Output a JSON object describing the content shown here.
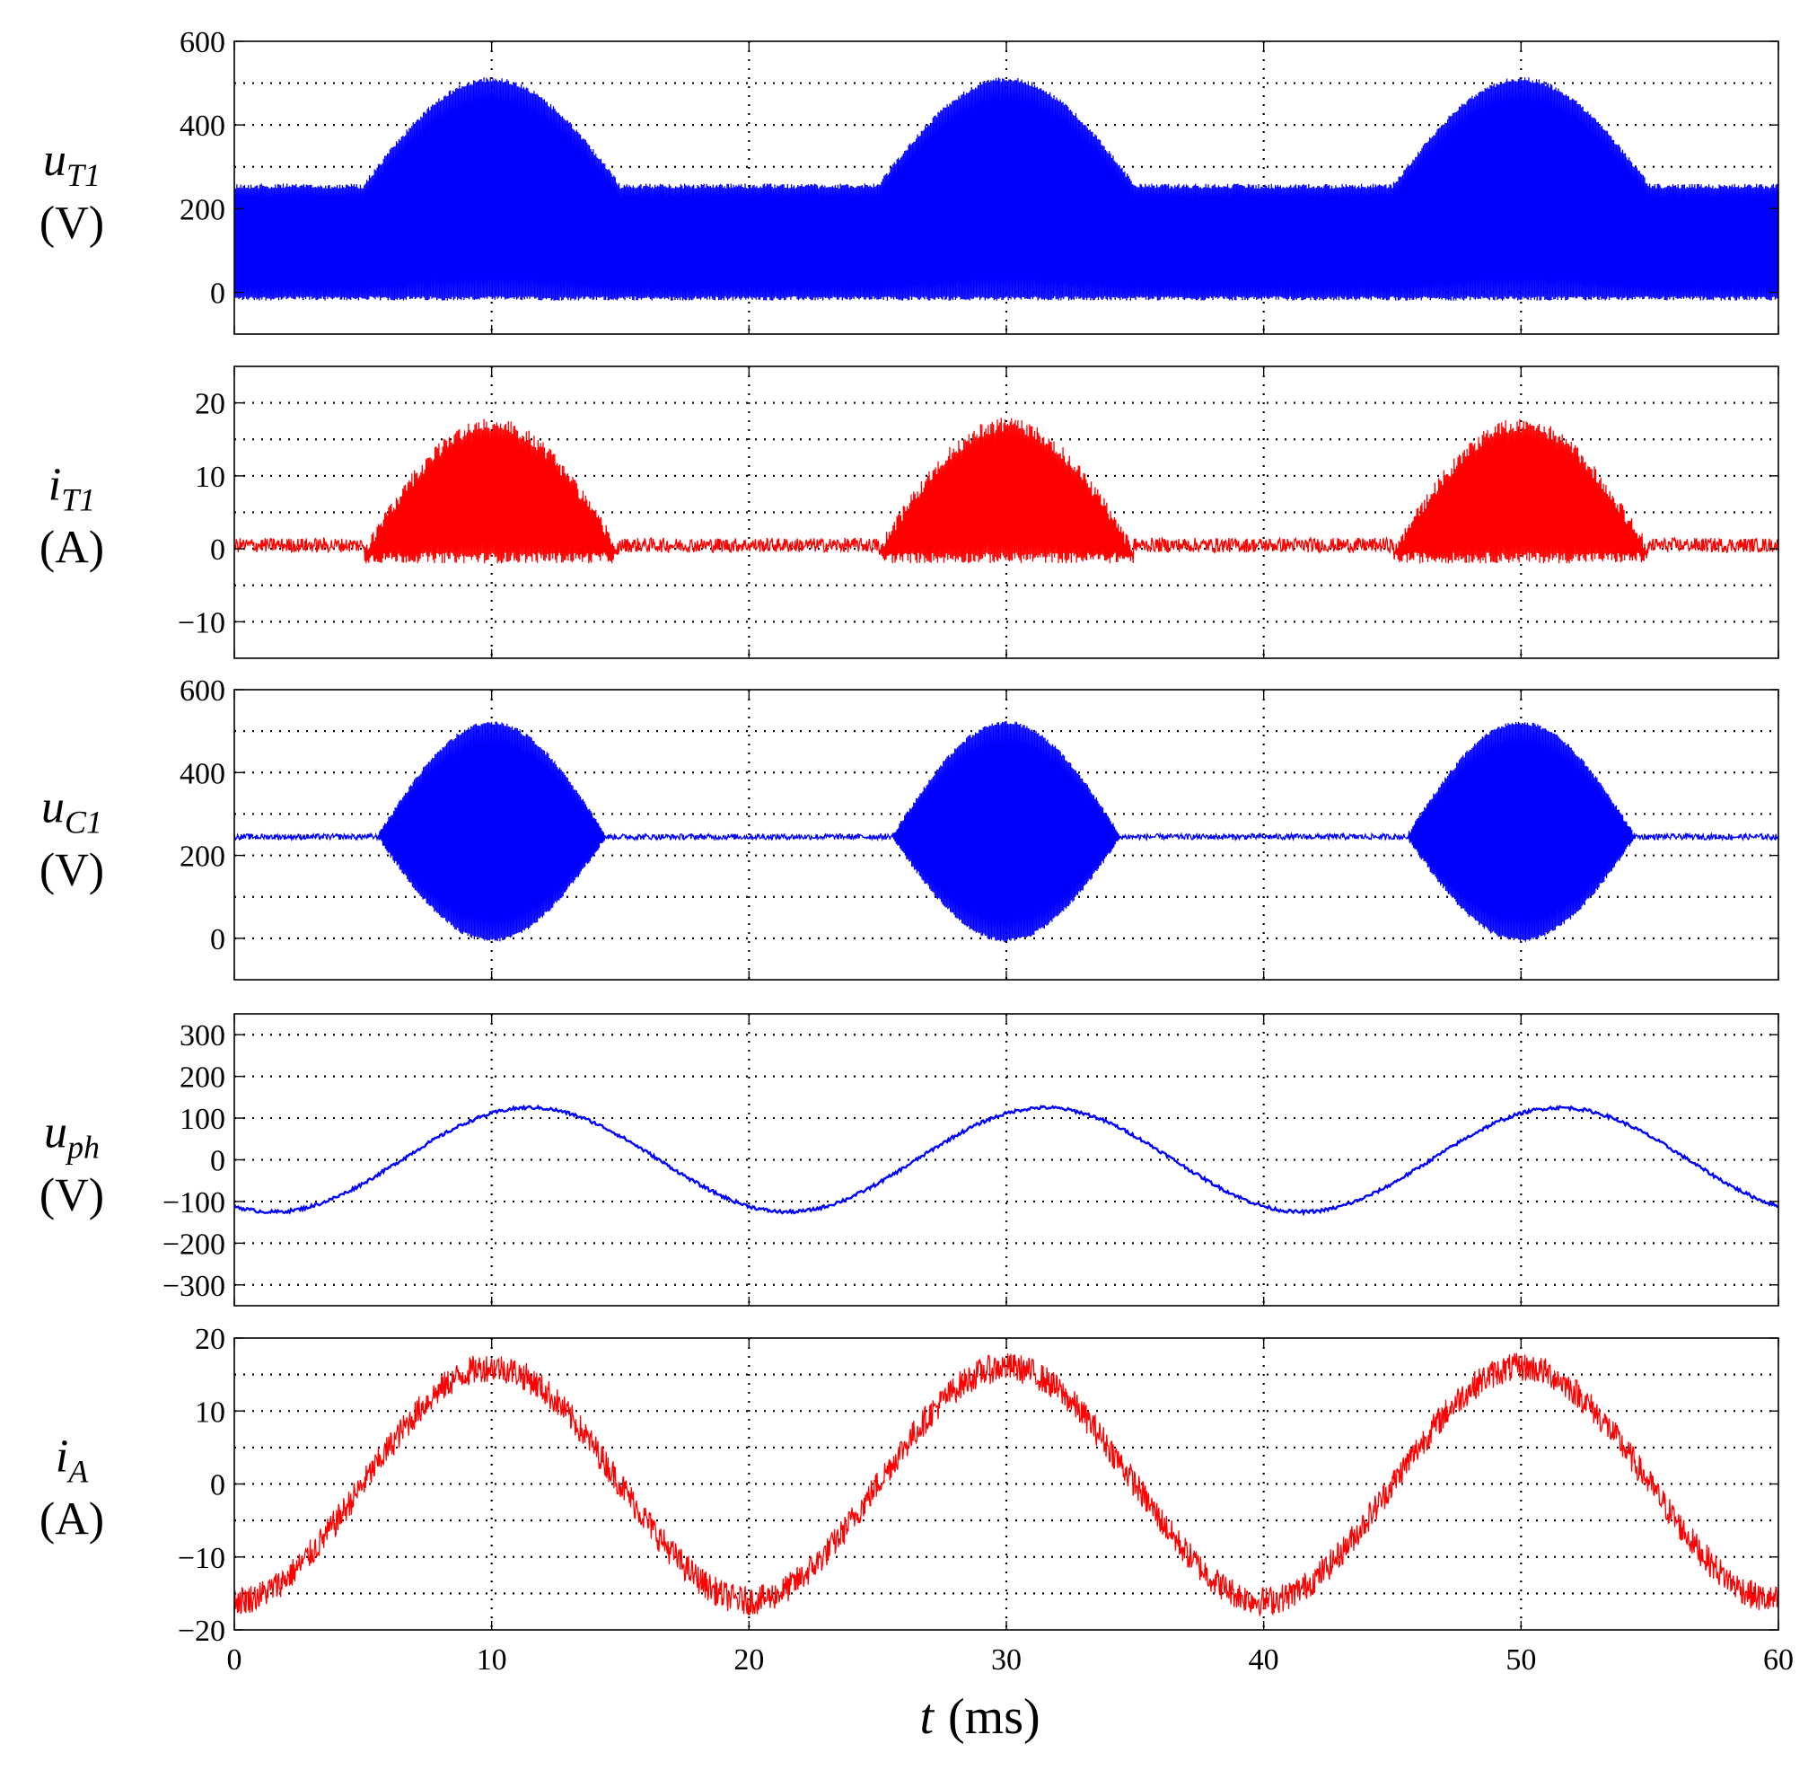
{
  "chart_data": [
    {
      "type": "line",
      "id": "uT1",
      "ylabel": {
        "main": "u",
        "sub": "T1",
        "unit": "(V)"
      },
      "ylim": [
        -100,
        600
      ],
      "yticks": [
        0,
        200,
        400,
        600
      ],
      "ytick_labels": [
        "0",
        "200",
        "400",
        "600"
      ],
      "ygrid": [
        0,
        100,
        200,
        300,
        400,
        500
      ],
      "color": "#0000ff",
      "description_values": {
        "switching_low": -20,
        "flat_envelope_high": 260,
        "hump_peak": 515,
        "hump_centers_ms": [
          10,
          30,
          50
        ],
        "hump_half_width_ms": 5
      }
    },
    {
      "type": "line",
      "id": "iT1",
      "ylabel": {
        "main": "i",
        "sub": "T1",
        "unit": "(A)"
      },
      "ylim": [
        -15,
        25
      ],
      "yticks": [
        -10,
        0,
        10,
        20
      ],
      "ytick_labels": [
        "−10",
        "0",
        "10",
        "20"
      ],
      "ygrid": [
        -10,
        -5,
        0,
        5,
        10,
        15,
        20
      ],
      "color": "#ff0000",
      "description_values": {
        "baseline": 0.5,
        "noise_amplitude": 1,
        "hump_peak": 18,
        "hump_low": -2,
        "hump_centers_ms": [
          10,
          30,
          50
        ],
        "hump_half_width_ms": 5
      }
    },
    {
      "type": "line",
      "id": "uC1",
      "ylabel": {
        "main": "u",
        "sub": "C1",
        "unit": "(V)"
      },
      "ylim": [
        -100,
        600
      ],
      "yticks": [
        0,
        200,
        400,
        600
      ],
      "ytick_labels": [
        "0",
        "200",
        "400",
        "600"
      ],
      "ygrid": [
        0,
        100,
        200,
        300,
        400,
        500
      ],
      "color": "#0000ff",
      "description_values": {
        "baseline": 245,
        "hump_peak": 525,
        "hump_low": -10,
        "hump_centers_ms": [
          10,
          30,
          50
        ],
        "hump_half_width_ms": 4.5
      }
    },
    {
      "type": "line",
      "id": "uph",
      "ylabel": {
        "main": "u",
        "sub": "ph",
        "unit": "(V)"
      },
      "ylim": [
        -350,
        350
      ],
      "yticks": [
        -300,
        -200,
        -100,
        0,
        100,
        200,
        300
      ],
      "ytick_labels": [
        "−300",
        "−200",
        "−100",
        "0",
        "100",
        "200",
        "300"
      ],
      "ygrid": [
        -300,
        -200,
        -100,
        0,
        100,
        200,
        300
      ],
      "color": "#0000ff",
      "description_values": {
        "amplitude": 125,
        "period_ms": 20,
        "peak_at_ms": [
          11.5,
          31.5,
          51.5
        ]
      }
    },
    {
      "type": "line",
      "id": "iA",
      "ylabel": {
        "main": "i",
        "sub": "A",
        "unit": "(A)"
      },
      "ylim": [
        -20,
        20
      ],
      "yticks": [
        -20,
        -10,
        0,
        10,
        20
      ],
      "ytick_labels": [
        "−20",
        "−10",
        "0",
        "10",
        "20"
      ],
      "ygrid": [
        -15,
        -10,
        -5,
        0,
        5,
        10,
        15
      ],
      "color": "#ff0000",
      "description_values": {
        "amplitude": 16,
        "ripple": 2,
        "period_ms": 20,
        "peak_at_ms": [
          10,
          30,
          50
        ]
      }
    }
  ],
  "shared_x": {
    "xlim": [
      0,
      60
    ],
    "xticks": [
      0,
      10,
      20,
      30,
      40,
      50,
      60
    ],
    "xtick_labels": [
      "0",
      "10",
      "20",
      "30",
      "40",
      "50",
      "60"
    ],
    "xlabel_var": "t",
    "xlabel_unit": "(ms)"
  },
  "colors": {
    "blue": "#0000ff",
    "red": "#ff0000",
    "black": "#000000"
  }
}
